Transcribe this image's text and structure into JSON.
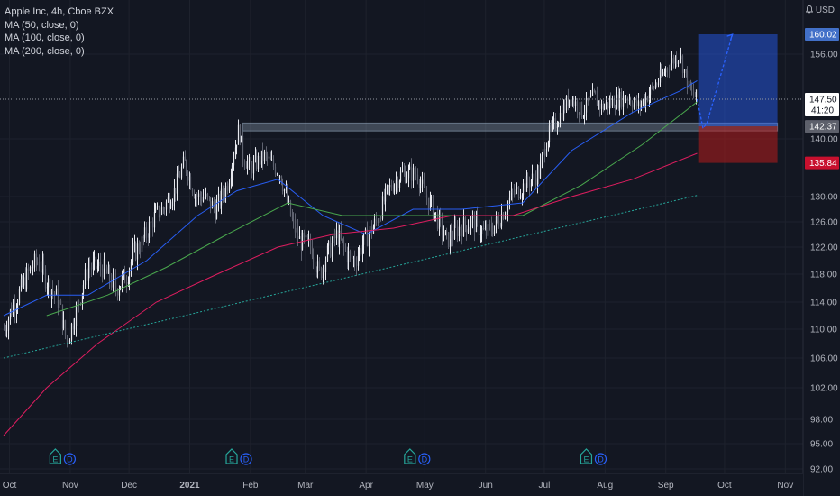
{
  "chart_data": {
    "type": "candlestick",
    "title": "Apple Inc, 4h, Cboe BZX",
    "indicators": [
      {
        "label": "MA (50, close, 0)",
        "color": "#2962ff"
      },
      {
        "label": "MA (100, close, 0)",
        "color": "#4caf50"
      },
      {
        "label": "MA (200, close, 0)",
        "color": "#e91e63"
      }
    ],
    "currency_label": "USD",
    "y_ticks": [
      92.0,
      95.0,
      98.0,
      102.0,
      106.0,
      110.0,
      114.0,
      118.0,
      122.0,
      126.0,
      130.0,
      140.0,
      156.0
    ],
    "x_ticks": [
      "Oct",
      "Nov",
      "Dec",
      "2021",
      "Feb",
      "Mar",
      "Apr",
      "May",
      "Jun",
      "Jul",
      "Aug",
      "Sep",
      "Oct",
      "Nov"
    ],
    "price_labels": [
      {
        "value": "160.02",
        "kind": "target"
      },
      {
        "value": "147.50",
        "kind": "last"
      },
      {
        "value": "41:20",
        "kind": "countdown"
      },
      {
        "value": "142.37",
        "kind": "entry"
      },
      {
        "value": "135.84",
        "kind": "stop"
      }
    ],
    "price_path": [
      [
        "2020-09-28",
        110
      ],
      [
        "2020-10-02",
        113
      ],
      [
        "2020-10-07",
        116
      ],
      [
        "2020-10-12",
        119
      ],
      [
        "2020-10-15",
        120
      ],
      [
        "2020-10-20",
        117
      ],
      [
        "2020-10-26",
        114
      ],
      [
        "2020-10-30",
        108
      ],
      [
        "2020-11-05",
        114
      ],
      [
        "2020-11-10",
        119
      ],
      [
        "2020-11-17",
        119
      ],
      [
        "2020-11-24",
        116
      ],
      [
        "2020-11-30",
        118
      ],
      [
        "2020-12-03",
        121
      ],
      [
        "2020-12-08",
        123
      ],
      [
        "2020-12-14",
        127
      ],
      [
        "2020-12-18",
        128
      ],
      [
        "2020-12-24",
        131
      ],
      [
        "2020-12-29",
        136
      ],
      [
        "2021-01-04",
        130
      ],
      [
        "2021-01-08",
        130
      ],
      [
        "2021-01-14",
        128
      ],
      [
        "2021-01-20",
        132
      ],
      [
        "2021-01-26",
        142
      ],
      [
        "2021-01-28",
        137
      ],
      [
        "2021-02-01",
        135
      ],
      [
        "2021-02-08",
        137
      ],
      [
        "2021-02-16",
        134
      ],
      [
        "2021-02-22",
        126
      ],
      [
        "2021-02-26",
        123
      ],
      [
        "2021-03-04",
        122
      ],
      [
        "2021-03-08",
        118
      ],
      [
        "2021-03-12",
        121
      ],
      [
        "2021-03-17",
        124
      ],
      [
        "2021-03-22",
        121
      ],
      [
        "2021-03-26",
        120
      ],
      [
        "2021-03-31",
        123
      ],
      [
        "2021-04-06",
        126
      ],
      [
        "2021-04-12",
        131
      ],
      [
        "2021-04-19",
        134
      ],
      [
        "2021-04-27",
        134
      ],
      [
        "2021-04-30",
        131
      ],
      [
        "2021-05-05",
        128
      ],
      [
        "2021-05-12",
        123
      ],
      [
        "2021-05-18",
        125
      ],
      [
        "2021-05-25",
        126
      ],
      [
        "2021-06-01",
        124
      ],
      [
        "2021-06-07",
        126
      ],
      [
        "2021-06-14",
        130
      ],
      [
        "2021-06-21",
        132
      ],
      [
        "2021-06-28",
        134
      ],
      [
        "2021-07-02",
        140
      ],
      [
        "2021-07-08",
        144
      ],
      [
        "2021-07-14",
        148
      ],
      [
        "2021-07-20",
        145
      ],
      [
        "2021-07-26",
        148
      ],
      [
        "2021-07-30",
        146
      ],
      [
        "2021-08-05",
        147
      ],
      [
        "2021-08-12",
        148
      ],
      [
        "2021-08-18",
        146
      ],
      [
        "2021-08-24",
        149
      ],
      [
        "2021-08-30",
        152
      ],
      [
        "2021-09-02",
        154
      ],
      [
        "2021-09-08",
        156
      ],
      [
        "2021-09-13",
        149
      ],
      [
        "2021-09-17",
        147.5
      ]
    ],
    "moving_averages": {
      "ma50": [
        [
          "2020-09-28",
          112
        ],
        [
          "2020-10-20",
          115
        ],
        [
          "2020-11-10",
          115
        ],
        [
          "2020-12-10",
          120
        ],
        [
          "2021-01-05",
          127
        ],
        [
          "2021-01-25",
          131
        ],
        [
          "2021-02-15",
          133
        ],
        [
          "2021-03-10",
          127
        ],
        [
          "2021-04-01",
          124
        ],
        [
          "2021-04-25",
          128
        ],
        [
          "2021-05-20",
          128
        ],
        [
          "2021-06-20",
          129
        ],
        [
          "2021-07-15",
          138
        ],
        [
          "2021-08-15",
          145
        ],
        [
          "2021-09-08",
          149
        ],
        [
          "2021-09-17",
          151
        ]
      ],
      "ma100": [
        [
          "2020-10-20",
          112
        ],
        [
          "2020-11-20",
          115
        ],
        [
          "2020-12-20",
          119
        ],
        [
          "2021-01-20",
          124
        ],
        [
          "2021-02-20",
          129
        ],
        [
          "2021-03-20",
          127
        ],
        [
          "2021-04-20",
          127
        ],
        [
          "2021-05-20",
          127
        ],
        [
          "2021-06-20",
          127
        ],
        [
          "2021-07-20",
          132
        ],
        [
          "2021-08-20",
          139
        ],
        [
          "2021-09-17",
          147
        ]
      ],
      "ma200": [
        [
          "2020-09-28",
          96
        ],
        [
          "2020-10-20",
          102
        ],
        [
          "2020-11-15",
          108
        ],
        [
          "2020-12-15",
          114
        ],
        [
          "2021-01-15",
          118
        ],
        [
          "2021-02-15",
          122
        ],
        [
          "2021-03-15",
          124
        ],
        [
          "2021-04-15",
          125
        ],
        [
          "2021-05-15",
          127
        ],
        [
          "2021-06-15",
          127
        ],
        [
          "2021-07-15",
          130
        ],
        [
          "2021-08-15",
          133
        ],
        [
          "2021-09-17",
          137.5
        ]
      ]
    },
    "trendlines": [
      {
        "from": [
          "2020-09-28",
          106
        ],
        "to": [
          "2021-09-17",
          130.2
        ]
      }
    ],
    "zones": [
      {
        "from": "2021-01-28",
        "to": "2021-10-28",
        "low": 141.5,
        "high": 143.0,
        "color": "#b2c9df"
      }
    ],
    "position": {
      "start": "2021-09-18",
      "end": "2021-10-28",
      "entry": 142.37,
      "target": 160.02,
      "stop": 135.84,
      "target_color": "#2962ff",
      "stop_color": "#b71c1c"
    },
    "projection": [
      [
        "2021-09-17",
        147.5
      ],
      [
        "2021-09-20",
        142
      ],
      [
        "2021-09-22",
        143
      ],
      [
        "2021-10-05",
        160
      ]
    ],
    "events": [
      {
        "date": "2020-10-29",
        "items": [
          "E",
          "D"
        ]
      },
      {
        "date": "2021-01-27",
        "items": [
          "E",
          "D"
        ]
      },
      {
        "date": "2021-04-28",
        "items": [
          "E",
          "D"
        ]
      },
      {
        "date": "2021-07-27",
        "items": [
          "E",
          "D"
        ]
      }
    ]
  }
}
